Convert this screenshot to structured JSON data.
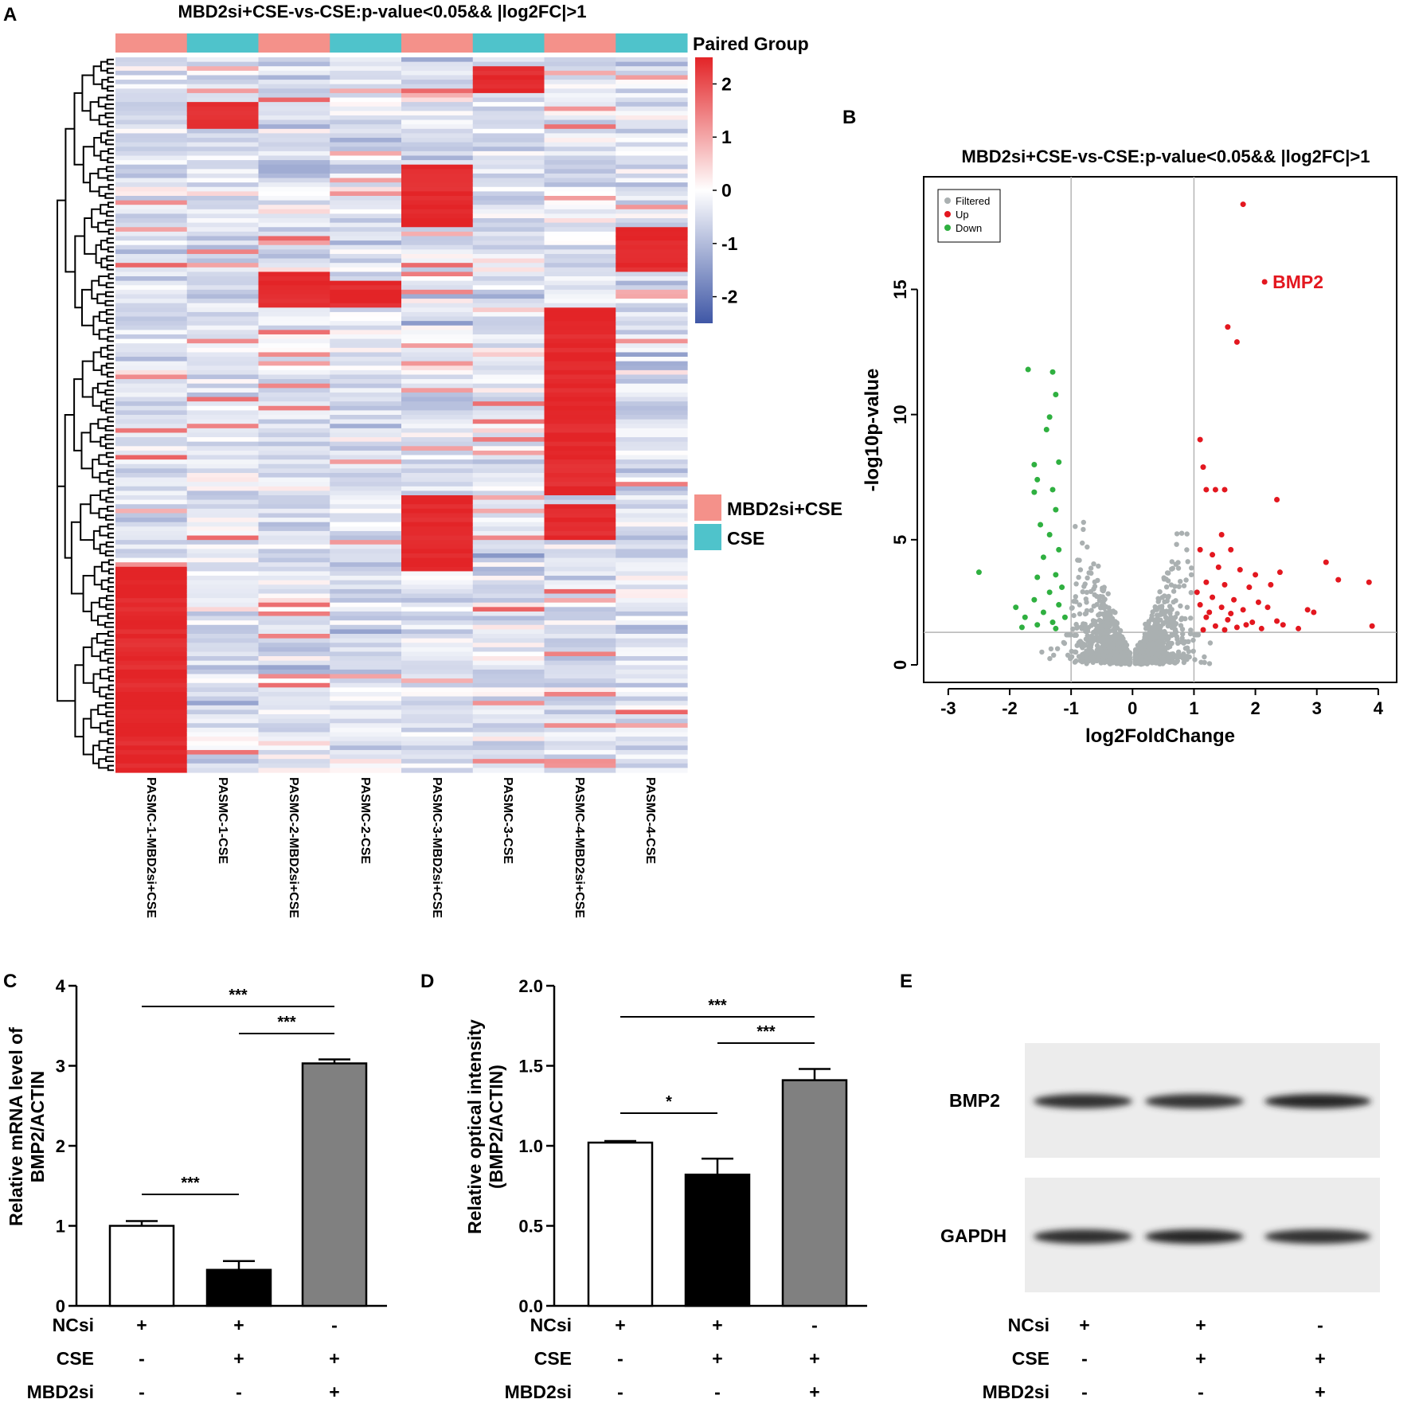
{
  "panel_labels": [
    "A",
    "B",
    "C",
    "D",
    "E"
  ],
  "chart_data": [
    {
      "panel": "A",
      "type": "heatmap",
      "title": "MBD2si+CSE-vs-CSE:p-value<0.05&& |log2FC|>1",
      "annotation_label": "Paired Group",
      "annotation_colors": [
        "#f4918a",
        "#4fc3cb",
        "#f4918a",
        "#4fc3cb",
        "#f4918a",
        "#4fc3cb",
        "#f4918a",
        "#4fc3cb"
      ],
      "columns": [
        "PASMC-1-MBD2si+CSE",
        "PASMC-1-CSE",
        "PASMC-2-MBD2si+CSE",
        "PASMC-2-CSE",
        "PASMC-3-MBD2si+CSE",
        "PASMC-3-CSE",
        "PASMC-4-MBD2si+CSE",
        "PASMC-4-CSE"
      ],
      "value_range": [
        -2.5,
        2.5
      ],
      "colorbar_ticks": [
        2,
        1,
        0,
        -1,
        -2
      ],
      "colorbar_colors": [
        "#e32427",
        "#ffffff",
        "#3f57a6"
      ],
      "row_count": 160,
      "high_blocks": [
        {
          "column": 0,
          "rows": [
            114,
            160
          ]
        },
        {
          "column": 1,
          "rows": [
            10,
            16
          ]
        },
        {
          "column": 2,
          "rows": [
            48,
            56
          ]
        },
        {
          "column": 3,
          "rows": [
            50,
            56
          ]
        },
        {
          "column": 4,
          "rows": [
            24,
            38
          ]
        },
        {
          "column": 4,
          "rows": [
            98,
            115
          ]
        },
        {
          "column": 5,
          "rows": [
            2,
            8
          ]
        },
        {
          "column": 6,
          "rows": [
            56,
            98
          ]
        },
        {
          "column": 6,
          "rows": [
            100,
            108
          ]
        },
        {
          "column": 7,
          "rows": [
            38,
            48
          ]
        }
      ],
      "legend": [
        {
          "label": "MBD2si+CSE",
          "color": "#f4918a"
        },
        {
          "label": "CSE",
          "color": "#4fc3cb"
        }
      ]
    },
    {
      "panel": "B",
      "type": "scatter",
      "title": "MBD2si+CSE-vs-CSE:p-value<0.05&& |log2FC|>1",
      "xlabel": "log2FoldChange",
      "ylabel": "-log10p-value",
      "xlim": [
        -3.4,
        4.3
      ],
      "ylim": [
        -0.7,
        19.5
      ],
      "xticks": [
        -3,
        -2,
        -1,
        0,
        1,
        2,
        3,
        4
      ],
      "yticks": [
        0,
        5,
        10,
        15
      ],
      "threshold_lines": {
        "x": [
          -1,
          1
        ],
        "y": 1.3
      },
      "legend": [
        {
          "label": "Filtered",
          "color": "#aab0b1"
        },
        {
          "label": "Up",
          "color": "#e3171f"
        },
        {
          "label": "Down",
          "color": "#2fb040"
        }
      ],
      "annotation": {
        "label": "BMP2",
        "x": 2.15,
        "y": 15.3
      },
      "up_points": [
        [
          1.8,
          18.4
        ],
        [
          2.15,
          15.3
        ],
        [
          1.55,
          13.5
        ],
        [
          1.7,
          12.9
        ],
        [
          1.1,
          9.0
        ],
        [
          1.15,
          7.9
        ],
        [
          1.2,
          7.0
        ],
        [
          1.35,
          7.0
        ],
        [
          1.5,
          7.0
        ],
        [
          2.35,
          6.6
        ],
        [
          1.45,
          5.2
        ],
        [
          1.1,
          4.6
        ],
        [
          1.3,
          4.4
        ],
        [
          1.6,
          4.6
        ],
        [
          3.15,
          4.1
        ],
        [
          1.4,
          3.9
        ],
        [
          1.75,
          3.8
        ],
        [
          2.0,
          3.6
        ],
        [
          2.4,
          3.7
        ],
        [
          3.35,
          3.4
        ],
        [
          1.2,
          3.3
        ],
        [
          1.5,
          3.2
        ],
        [
          1.9,
          3.1
        ],
        [
          2.25,
          3.2
        ],
        [
          3.85,
          3.3
        ],
        [
          1.05,
          2.9
        ],
        [
          1.3,
          2.7
        ],
        [
          1.65,
          2.6
        ],
        [
          2.05,
          2.5
        ],
        [
          1.1,
          2.4
        ],
        [
          1.45,
          2.3
        ],
        [
          1.8,
          2.2
        ],
        [
          2.2,
          2.3
        ],
        [
          2.85,
          2.2
        ],
        [
          2.95,
          2.1
        ],
        [
          1.2,
          1.9
        ],
        [
          1.55,
          1.8
        ],
        [
          1.95,
          1.7
        ],
        [
          2.45,
          1.6
        ],
        [
          1.35,
          1.55
        ],
        [
          1.7,
          1.5
        ],
        [
          2.1,
          1.45
        ],
        [
          2.7,
          1.45
        ],
        [
          3.9,
          1.55
        ],
        [
          1.15,
          1.4
        ],
        [
          1.5,
          1.4
        ],
        [
          1.85,
          1.6
        ],
        [
          2.35,
          1.75
        ],
        [
          1.25,
          2.1
        ],
        [
          1.6,
          2.05
        ]
      ],
      "down_points": [
        [
          -1.7,
          11.8
        ],
        [
          -1.3,
          11.7
        ],
        [
          -1.25,
          10.8
        ],
        [
          -1.35,
          9.9
        ],
        [
          -1.4,
          9.4
        ],
        [
          -1.6,
          8.0
        ],
        [
          -1.2,
          8.1
        ],
        [
          -1.55,
          7.4
        ],
        [
          -1.3,
          7.0
        ],
        [
          -1.6,
          6.9
        ],
        [
          -1.25,
          6.2
        ],
        [
          -1.5,
          5.6
        ],
        [
          -1.35,
          5.2
        ],
        [
          -1.2,
          4.6
        ],
        [
          -1.45,
          4.3
        ],
        [
          -2.5,
          3.7
        ],
        [
          -1.25,
          3.6
        ],
        [
          -1.55,
          3.5
        ],
        [
          -1.15,
          3.1
        ],
        [
          -1.35,
          2.9
        ],
        [
          -1.6,
          2.6
        ],
        [
          -1.2,
          2.4
        ],
        [
          -1.9,
          2.3
        ],
        [
          -1.45,
          2.1
        ],
        [
          -1.75,
          1.9
        ],
        [
          -1.1,
          1.9
        ],
        [
          -1.3,
          1.7
        ],
        [
          -1.55,
          1.6
        ],
        [
          -1.8,
          1.5
        ],
        [
          -1.25,
          1.45
        ]
      ]
    },
    {
      "panel": "C",
      "type": "bar",
      "ylabel": "Relative mRNA level of BMP2/ACTIN",
      "ylabel_lines": [
        "Relative mRNA level of",
        "BMP2/ACTIN"
      ],
      "ylim": [
        0,
        4
      ],
      "yticks": [
        "0",
        "1",
        "2",
        "3",
        "4"
      ],
      "values": [
        1.0,
        0.45,
        3.03
      ],
      "errors": [
        0.06,
        0.11,
        0.05
      ],
      "bar_colors": [
        "#ffffff",
        "#000000",
        "#808080"
      ],
      "significance": [
        {
          "from": 0,
          "to": 2,
          "label": "***"
        },
        {
          "from": 1,
          "to": 2,
          "label": "***"
        },
        {
          "from": 0,
          "to": 1,
          "label": "***"
        }
      ],
      "conditions": [
        {
          "name": "NCsi",
          "marks": [
            "+",
            "+",
            "-"
          ]
        },
        {
          "name": "CSE",
          "marks": [
            "-",
            "+",
            "+"
          ]
        },
        {
          "name": "MBD2si",
          "marks": [
            "-",
            "-",
            "+"
          ]
        }
      ]
    },
    {
      "panel": "D",
      "type": "bar",
      "ylabel": "Relative optical intensity (BMP2/ACTIN)",
      "ylabel_lines": [
        "Relative optical intensity",
        "(BMP2/ACTIN)"
      ],
      "ylim": [
        0,
        2
      ],
      "yticks": [
        "0.0",
        "0.5",
        "1.0",
        "1.5",
        "2.0"
      ],
      "values": [
        1.02,
        0.82,
        1.41
      ],
      "errors": [
        0.01,
        0.1,
        0.07
      ],
      "bar_colors": [
        "#ffffff",
        "#000000",
        "#808080"
      ],
      "significance": [
        {
          "from": 0,
          "to": 2,
          "label": "***"
        },
        {
          "from": 1,
          "to": 2,
          "label": "***"
        },
        {
          "from": 0,
          "to": 1,
          "label": "*"
        }
      ],
      "conditions": [
        {
          "name": "NCsi",
          "marks": [
            "+",
            "+",
            "-"
          ]
        },
        {
          "name": "CSE",
          "marks": [
            "-",
            "+",
            "+"
          ]
        },
        {
          "name": "MBD2si",
          "marks": [
            "-",
            "-",
            "+"
          ]
        }
      ]
    },
    {
      "panel": "E",
      "type": "blot",
      "bands": [
        {
          "label": "BMP2",
          "intensities": [
            0.9,
            0.85,
            1.0
          ]
        },
        {
          "label": "GAPDH",
          "intensities": [
            0.95,
            1.0,
            0.9
          ]
        }
      ],
      "conditions": [
        {
          "name": "NCsi",
          "marks": [
            "+",
            "+",
            "-"
          ]
        },
        {
          "name": "CSE",
          "marks": [
            "-",
            "+",
            "+"
          ]
        },
        {
          "name": "MBD2si",
          "marks": [
            "-",
            "-",
            "+"
          ]
        }
      ]
    }
  ]
}
